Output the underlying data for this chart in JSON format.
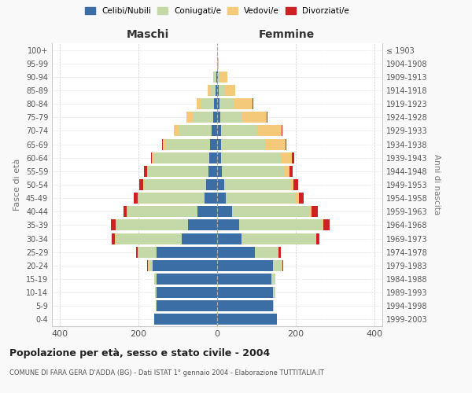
{
  "age_groups": [
    "0-4",
    "5-9",
    "10-14",
    "15-19",
    "20-24",
    "25-29",
    "30-34",
    "35-39",
    "40-44",
    "45-49",
    "50-54",
    "55-59",
    "60-64",
    "65-69",
    "70-74",
    "75-79",
    "80-84",
    "85-89",
    "90-94",
    "95-99",
    "100+"
  ],
  "birth_years": [
    "1999-2003",
    "1994-1998",
    "1989-1993",
    "1984-1988",
    "1979-1983",
    "1974-1978",
    "1969-1973",
    "1964-1968",
    "1959-1963",
    "1954-1958",
    "1949-1953",
    "1944-1948",
    "1939-1943",
    "1934-1938",
    "1929-1933",
    "1924-1928",
    "1919-1923",
    "1914-1918",
    "1909-1913",
    "1904-1908",
    "≤ 1903"
  ],
  "maschi": {
    "celibi": [
      160,
      155,
      155,
      155,
      165,
      155,
      90,
      75,
      50,
      32,
      28,
      22,
      20,
      18,
      15,
      10,
      8,
      5,
      3,
      0,
      0
    ],
    "coniugati": [
      0,
      2,
      3,
      5,
      10,
      45,
      168,
      182,
      178,
      168,
      158,
      155,
      142,
      112,
      82,
      52,
      32,
      14,
      6,
      1,
      0
    ],
    "vedovi": [
      0,
      0,
      0,
      0,
      2,
      2,
      2,
      2,
      2,
      2,
      2,
      2,
      4,
      9,
      14,
      16,
      12,
      5,
      2,
      0,
      0
    ],
    "divorziati": [
      0,
      0,
      0,
      0,
      2,
      5,
      8,
      12,
      8,
      10,
      10,
      8,
      2,
      1,
      0,
      0,
      0,
      0,
      0,
      0,
      0
    ]
  },
  "femmine": {
    "nubili": [
      152,
      142,
      142,
      138,
      142,
      95,
      62,
      55,
      38,
      22,
      18,
      12,
      10,
      10,
      10,
      8,
      5,
      4,
      2,
      0,
      0
    ],
    "coniugate": [
      0,
      2,
      5,
      10,
      22,
      58,
      188,
      212,
      198,
      178,
      168,
      158,
      152,
      112,
      92,
      56,
      36,
      16,
      5,
      0,
      0
    ],
    "vedove": [
      0,
      0,
      0,
      0,
      2,
      3,
      2,
      3,
      4,
      8,
      8,
      14,
      28,
      52,
      62,
      62,
      48,
      25,
      18,
      3,
      0
    ],
    "divorziate": [
      0,
      0,
      0,
      0,
      2,
      5,
      8,
      15,
      15,
      12,
      12,
      8,
      5,
      2,
      2,
      2,
      2,
      0,
      0,
      0,
      0
    ]
  },
  "colors": {
    "celibi": "#3a6ea5",
    "coniugati": "#c5d9a8",
    "vedovi": "#f5c97a",
    "divorziati": "#cc2222"
  },
  "xlim": 420,
  "title": "Popolazione per età, sesso e stato civile - 2004",
  "subtitle": "COMUNE DI FARA GERA D'ADDA (BG) - Dati ISTAT 1° gennaio 2004 - Elaborazione TUTTITALIA.IT",
  "ylabel": "Fasce di età",
  "ylabel_right": "Anni di nascita",
  "maschi_label": "Maschi",
  "femmine_label": "Femmine",
  "legend_labels": [
    "Celibi/Nubili",
    "Coniugati/e",
    "Vedovi/e",
    "Divorziati/e"
  ],
  "bg_color": "#f9f9f9",
  "plot_bg": "#ffffff"
}
